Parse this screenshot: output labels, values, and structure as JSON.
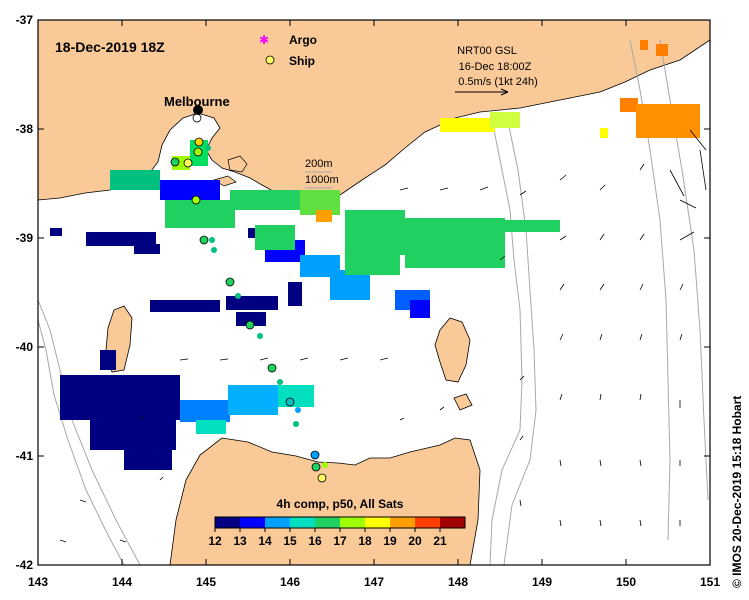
{
  "map": {
    "title_date": "18-Dec-2019 18Z",
    "legend_markers": [
      {
        "label": "Argo",
        "color": "#ff00ff",
        "shape": "argo"
      },
      {
        "label": "Ship",
        "color": "#ffff66",
        "shape": "ship"
      }
    ],
    "current_info": {
      "line1": "NRT00 GSL",
      "line2": "16-Dec 18:00Z",
      "line3": "0.5m/s (1kt 24h)"
    },
    "depth_contours": {
      "c200": "200m",
      "c1000": "1000m"
    },
    "place_label": "Melbourne",
    "x_ticks": [
      "143",
      "144",
      "145",
      "146",
      "147",
      "148",
      "149",
      "150",
      "151"
    ],
    "y_ticks": [
      "-37",
      "-38",
      "-39",
      "-40",
      "-41",
      "-42"
    ],
    "lon_range": [
      143,
      151
    ],
    "lat_range": [
      -42,
      -37
    ],
    "colorbar": {
      "title": "4h comp, p50, All Sats",
      "ticks": [
        "12",
        "13",
        "14",
        "15",
        "16",
        "17",
        "18",
        "19",
        "20",
        "21"
      ],
      "range": [
        12,
        22
      ],
      "colors": [
        "#000080",
        "#0000ff",
        "#00a0ff",
        "#00e0c0",
        "#20d060",
        "#a0ff00",
        "#ffff00",
        "#ffa000",
        "#ff4000",
        "#a00000"
      ]
    },
    "credit": "© IMOS 20-Dec-2019 15:18 Hobart",
    "colors": {
      "land": "#f9c998",
      "ocean": "#ffffff",
      "contour": "#a8a8a8"
    }
  }
}
